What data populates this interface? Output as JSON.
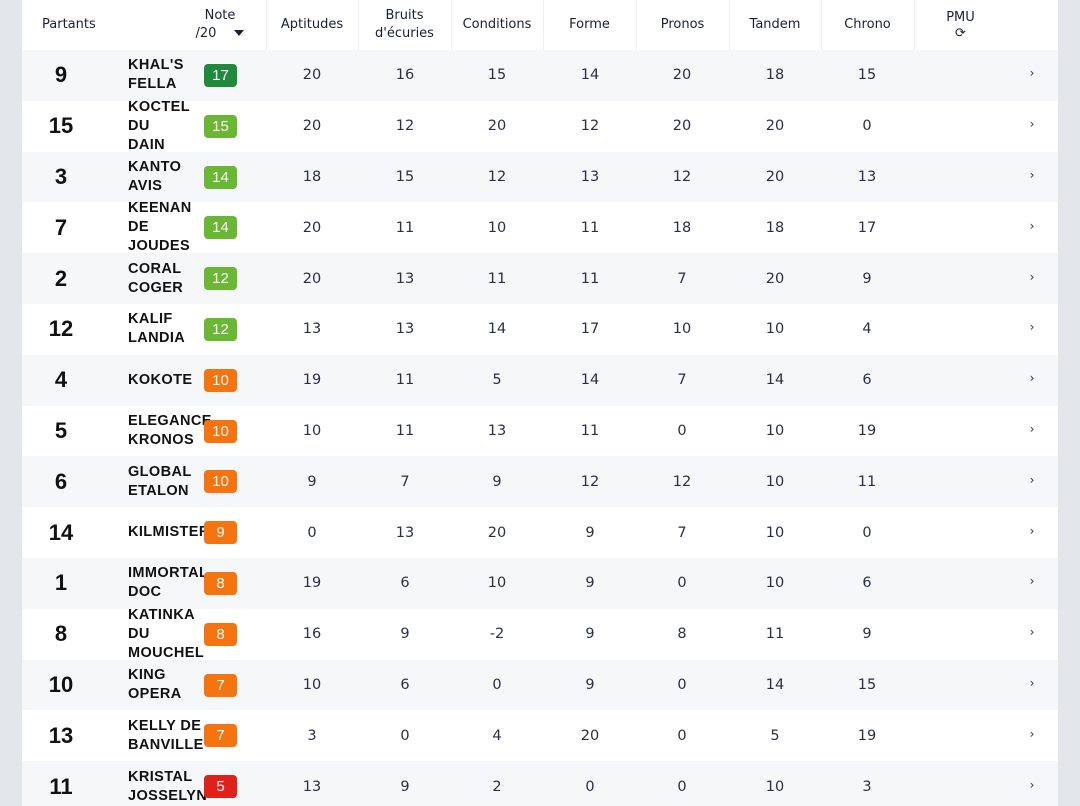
{
  "header": {
    "partants": "Partants",
    "note_line1": "Note",
    "note_line2": "/20",
    "aptitudes": "Aptitudes",
    "bruits_line1": "Bruits",
    "bruits_line2": "d'écuries",
    "conditions": "Conditions",
    "forme": "Forme",
    "pronos": "Pronos",
    "tandem": "Tandem",
    "chrono": "Chrono",
    "pmu": "PMU",
    "refresh_glyph": "⟳"
  },
  "chevron_glyph": "›",
  "colors": {
    "dark_green": "#1f8a3b",
    "light_green": "#6ab734",
    "orange": "#f5740f",
    "red": "#e0201b"
  },
  "rows": [
    {
      "num": "9",
      "name": "KHAL'S\nFELLA",
      "note": "17",
      "color": "#1f8a3b",
      "aptitudes": "20",
      "bruits": "16",
      "conditions": "15",
      "forme": "14",
      "pronos": "20",
      "tandem": "18",
      "chrono": "15"
    },
    {
      "num": "15",
      "name": "KOCTEL\nDU\nDAIN",
      "note": "15",
      "color": "#6ab734",
      "aptitudes": "20",
      "bruits": "12",
      "conditions": "20",
      "forme": "12",
      "pronos": "20",
      "tandem": "20",
      "chrono": "0"
    },
    {
      "num": "3",
      "name": "KANTO\nAVIS",
      "note": "14",
      "color": "#6ab734",
      "aptitudes": "18",
      "bruits": "15",
      "conditions": "12",
      "forme": "13",
      "pronos": "12",
      "tandem": "20",
      "chrono": "13"
    },
    {
      "num": "7",
      "name": "KEENAN\nDE\nJOUDES",
      "note": "14",
      "color": "#6ab734",
      "aptitudes": "20",
      "bruits": "11",
      "conditions": "10",
      "forme": "11",
      "pronos": "18",
      "tandem": "18",
      "chrono": "17"
    },
    {
      "num": "2",
      "name": "CORAL\nCOGER",
      "note": "12",
      "color": "#6ab734",
      "aptitudes": "20",
      "bruits": "13",
      "conditions": "11",
      "forme": "11",
      "pronos": "7",
      "tandem": "20",
      "chrono": "9"
    },
    {
      "num": "12",
      "name": "KALIF\nLANDIA",
      "note": "12",
      "color": "#6ab734",
      "aptitudes": "13",
      "bruits": "13",
      "conditions": "14",
      "forme": "17",
      "pronos": "10",
      "tandem": "10",
      "chrono": "4"
    },
    {
      "num": "4",
      "name": "KOKOTE",
      "note": "10",
      "color": "#f5740f",
      "aptitudes": "19",
      "bruits": "11",
      "conditions": "5",
      "forme": "14",
      "pronos": "7",
      "tandem": "14",
      "chrono": "6"
    },
    {
      "num": "5",
      "name": "ELEGANCE\nKRONOS",
      "note": "10",
      "color": "#f5740f",
      "aptitudes": "10",
      "bruits": "11",
      "conditions": "13",
      "forme": "11",
      "pronos": "0",
      "tandem": "10",
      "chrono": "19"
    },
    {
      "num": "6",
      "name": "GLOBAL\nETALON",
      "note": "10",
      "color": "#f5740f",
      "aptitudes": "9",
      "bruits": "7",
      "conditions": "9",
      "forme": "12",
      "pronos": "12",
      "tandem": "10",
      "chrono": "11"
    },
    {
      "num": "14",
      "name": "KILMISTER",
      "note": "9",
      "color": "#f5740f",
      "aptitudes": "0",
      "bruits": "13",
      "conditions": "20",
      "forme": "9",
      "pronos": "7",
      "tandem": "10",
      "chrono": "0"
    },
    {
      "num": "1",
      "name": "IMMORTAL\nDOC",
      "note": "8",
      "color": "#f5740f",
      "aptitudes": "19",
      "bruits": "6",
      "conditions": "10",
      "forme": "9",
      "pronos": "0",
      "tandem": "10",
      "chrono": "6"
    },
    {
      "num": "8",
      "name": "KATINKA\nDU\nMOUCHEL",
      "note": "8",
      "color": "#f5740f",
      "aptitudes": "16",
      "bruits": "9",
      "conditions": "-2",
      "forme": "9",
      "pronos": "8",
      "tandem": "11",
      "chrono": "9"
    },
    {
      "num": "10",
      "name": "KING\nOPERA",
      "note": "7",
      "color": "#f5740f",
      "aptitudes": "10",
      "bruits": "6",
      "conditions": "0",
      "forme": "9",
      "pronos": "0",
      "tandem": "14",
      "chrono": "15"
    },
    {
      "num": "13",
      "name": "KELLY DE\nBANVILLE",
      "note": "7",
      "color": "#f5740f",
      "aptitudes": "3",
      "bruits": "0",
      "conditions": "4",
      "forme": "20",
      "pronos": "0",
      "tandem": "5",
      "chrono": "19"
    },
    {
      "num": "11",
      "name": "KRISTAL\nJOSSELYN",
      "note": "5",
      "color": "#e0201b",
      "aptitudes": "13",
      "bruits": "9",
      "conditions": "2",
      "forme": "0",
      "pronos": "0",
      "tandem": "10",
      "chrono": "3"
    }
  ]
}
